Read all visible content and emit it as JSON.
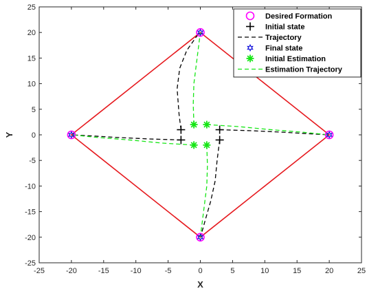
{
  "chart_data": {
    "type": "scatter",
    "xlabel": "X",
    "ylabel": "Y",
    "xlim": [
      -25,
      25
    ],
    "ylim": [
      -25,
      25
    ],
    "xticks": [
      "-25",
      "-20",
      "-15",
      "-10",
      "-5",
      "0",
      "5",
      "10",
      "15",
      "20",
      "25"
    ],
    "yticks": [
      "-25",
      "-20",
      "-15",
      "-10",
      "-5",
      "0",
      "5",
      "10",
      "15",
      "20",
      "25"
    ],
    "grid": false,
    "legend_position": "top-right",
    "formation_outline": {
      "color": "#e6191e",
      "points": [
        [
          0,
          20
        ],
        [
          20,
          0
        ],
        [
          0,
          -20
        ],
        [
          -20,
          0
        ]
      ]
    },
    "series": [
      {
        "name": "Desired Formation",
        "marker": "circle",
        "color": "#ff00ff",
        "points": [
          [
            0,
            20
          ],
          [
            20,
            0
          ],
          [
            0,
            -20
          ],
          [
            -20,
            0
          ]
        ]
      },
      {
        "name": "Initial state",
        "marker": "plus",
        "color": "#000000",
        "points": [
          [
            -3,
            1
          ],
          [
            3,
            1
          ],
          [
            3,
            -1
          ],
          [
            -3,
            -1
          ]
        ]
      },
      {
        "name": "Trajectory",
        "marker": "dashed-line",
        "color": "#000000",
        "paths": [
          [
            [
              -3,
              1
            ],
            [
              -3.3,
              4
            ],
            [
              -3.6,
              9
            ],
            [
              -3.2,
              13
            ],
            [
              -2.1,
              16.5
            ],
            [
              -0.6,
              19.2
            ],
            [
              0,
              20
            ]
          ],
          [
            [
              3,
              1
            ],
            [
              8,
              0.8
            ],
            [
              13,
              0.5
            ],
            [
              17,
              0.2
            ],
            [
              20,
              0
            ]
          ],
          [
            [
              3,
              -1
            ],
            [
              2.6,
              -5
            ],
            [
              2.3,
              -9
            ],
            [
              1.6,
              -13
            ],
            [
              0.8,
              -16.5
            ],
            [
              0.2,
              -19.2
            ],
            [
              0,
              -20
            ]
          ],
          [
            [
              -3,
              -1
            ],
            [
              -8,
              -0.8
            ],
            [
              -13,
              -0.5
            ],
            [
              -17,
              -0.2
            ],
            [
              -20,
              0
            ]
          ]
        ]
      },
      {
        "name": "Final state",
        "marker": "hexagram",
        "color": "#1414dc",
        "points": [
          [
            0,
            20
          ],
          [
            20,
            0
          ],
          [
            0,
            -20
          ],
          [
            -20,
            0
          ]
        ]
      },
      {
        "name": "Initial Estimation",
        "marker": "asterisk",
        "color": "#14e614",
        "points": [
          [
            -1,
            2
          ],
          [
            1,
            2
          ],
          [
            1,
            -2
          ],
          [
            -1,
            -2
          ]
        ]
      },
      {
        "name": "Estimation Trajectory",
        "marker": "dashed-line",
        "color": "#14e614",
        "paths": [
          [
            [
              -1,
              2
            ],
            [
              -1.1,
              6
            ],
            [
              -1,
              10
            ],
            [
              -0.6,
              14
            ],
            [
              -0.2,
              18
            ],
            [
              0,
              20
            ]
          ],
          [
            [
              1,
              2
            ],
            [
              6,
              1.6
            ],
            [
              11,
              1
            ],
            [
              16,
              0.5
            ],
            [
              20,
              0
            ]
          ],
          [
            [
              1,
              -2
            ],
            [
              1.1,
              -6
            ],
            [
              1,
              -10
            ],
            [
              0.6,
              -14
            ],
            [
              0.2,
              -18
            ],
            [
              0,
              -20
            ]
          ],
          [
            [
              -1,
              -2
            ],
            [
              -6,
              -1.6
            ],
            [
              -11,
              -1
            ],
            [
              -16,
              -0.5
            ],
            [
              -20,
              0
            ]
          ]
        ]
      }
    ]
  }
}
